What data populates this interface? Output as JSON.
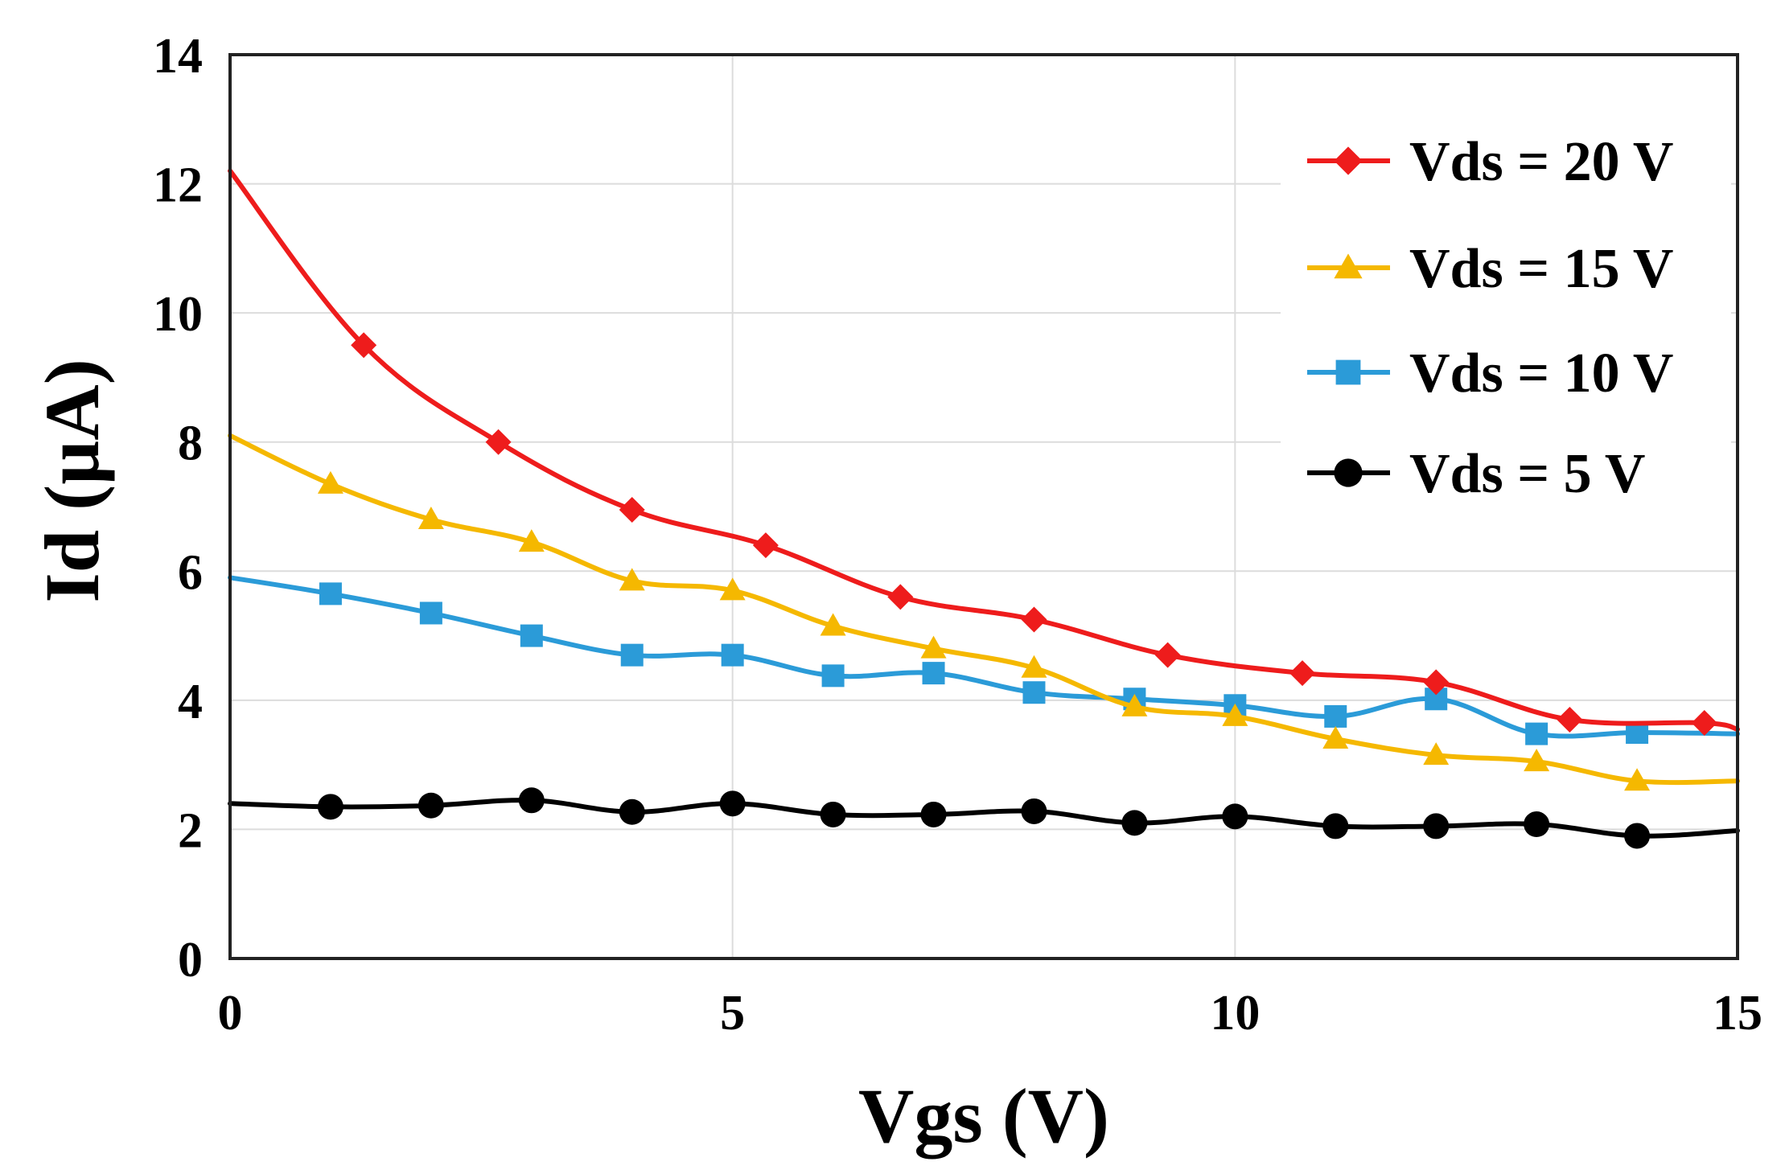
{
  "chart_data": {
    "type": "line",
    "title": "",
    "xlabel": "Vgs (V)",
    "ylabel": "Id (µA)",
    "xlim": [
      0,
      15
    ],
    "ylim": [
      0,
      14
    ],
    "xticks": [
      0,
      5,
      10,
      15
    ],
    "xtick_labels": [
      "0",
      "5",
      "10",
      "15"
    ],
    "yticks": [
      0,
      2,
      4,
      6,
      8,
      10,
      12,
      14
    ],
    "ytick_labels": [
      "0",
      "2",
      "4",
      "6",
      "8",
      "10",
      "12",
      "14"
    ],
    "grid": true,
    "legend_position": "top-right",
    "series": [
      {
        "name": "Vds = 20 V",
        "color": "#ee1c1c",
        "marker": "diamond",
        "x": [
          0,
          1.33,
          2.67,
          4,
          5.33,
          6.67,
          8,
          9.33,
          10.67,
          12,
          13.33,
          14.67,
          15
        ],
        "y": [
          12.2,
          9.5,
          8.0,
          6.95,
          6.4,
          5.6,
          5.25,
          4.7,
          4.42,
          4.28,
          3.7,
          3.65,
          3.55
        ],
        "markers_from_index": 1,
        "markers_to_index": 11
      },
      {
        "name": "Vds = 15 V",
        "color": "#f5b800",
        "marker": "triangle",
        "x": [
          0,
          1,
          2,
          3,
          4,
          5,
          6,
          7,
          8,
          9,
          10,
          11,
          12,
          13,
          14,
          15
        ],
        "y": [
          8.1,
          7.35,
          6.8,
          6.45,
          5.85,
          5.7,
          5.15,
          4.8,
          4.5,
          3.9,
          3.75,
          3.4,
          3.15,
          3.05,
          2.75,
          2.75
        ],
        "markers_from_index": 1,
        "markers_to_index": 14
      },
      {
        "name": "Vds = 10 V",
        "color": "#2b9bd8",
        "marker": "square",
        "x": [
          0,
          1,
          2,
          3,
          4,
          5,
          6,
          7,
          8,
          9,
          10,
          11,
          12,
          13,
          14,
          15
        ],
        "y": [
          5.9,
          5.65,
          5.35,
          5.0,
          4.7,
          4.7,
          4.38,
          4.42,
          4.12,
          4.02,
          3.92,
          3.75,
          4.02,
          3.48,
          3.5,
          3.48
        ],
        "markers_from_index": 1,
        "markers_to_index": 14
      },
      {
        "name": "Vds = 5 V",
        "color": "#000000",
        "marker": "circle",
        "x": [
          0,
          1,
          2,
          3,
          4,
          5,
          6,
          7,
          8,
          9,
          10,
          11,
          12,
          13,
          14,
          15
        ],
        "y": [
          2.4,
          2.35,
          2.37,
          2.45,
          2.27,
          2.4,
          2.23,
          2.23,
          2.28,
          2.1,
          2.2,
          2.05,
          2.05,
          2.08,
          1.9,
          1.98
        ],
        "markers_from_index": 1,
        "markers_to_index": 14
      }
    ]
  }
}
